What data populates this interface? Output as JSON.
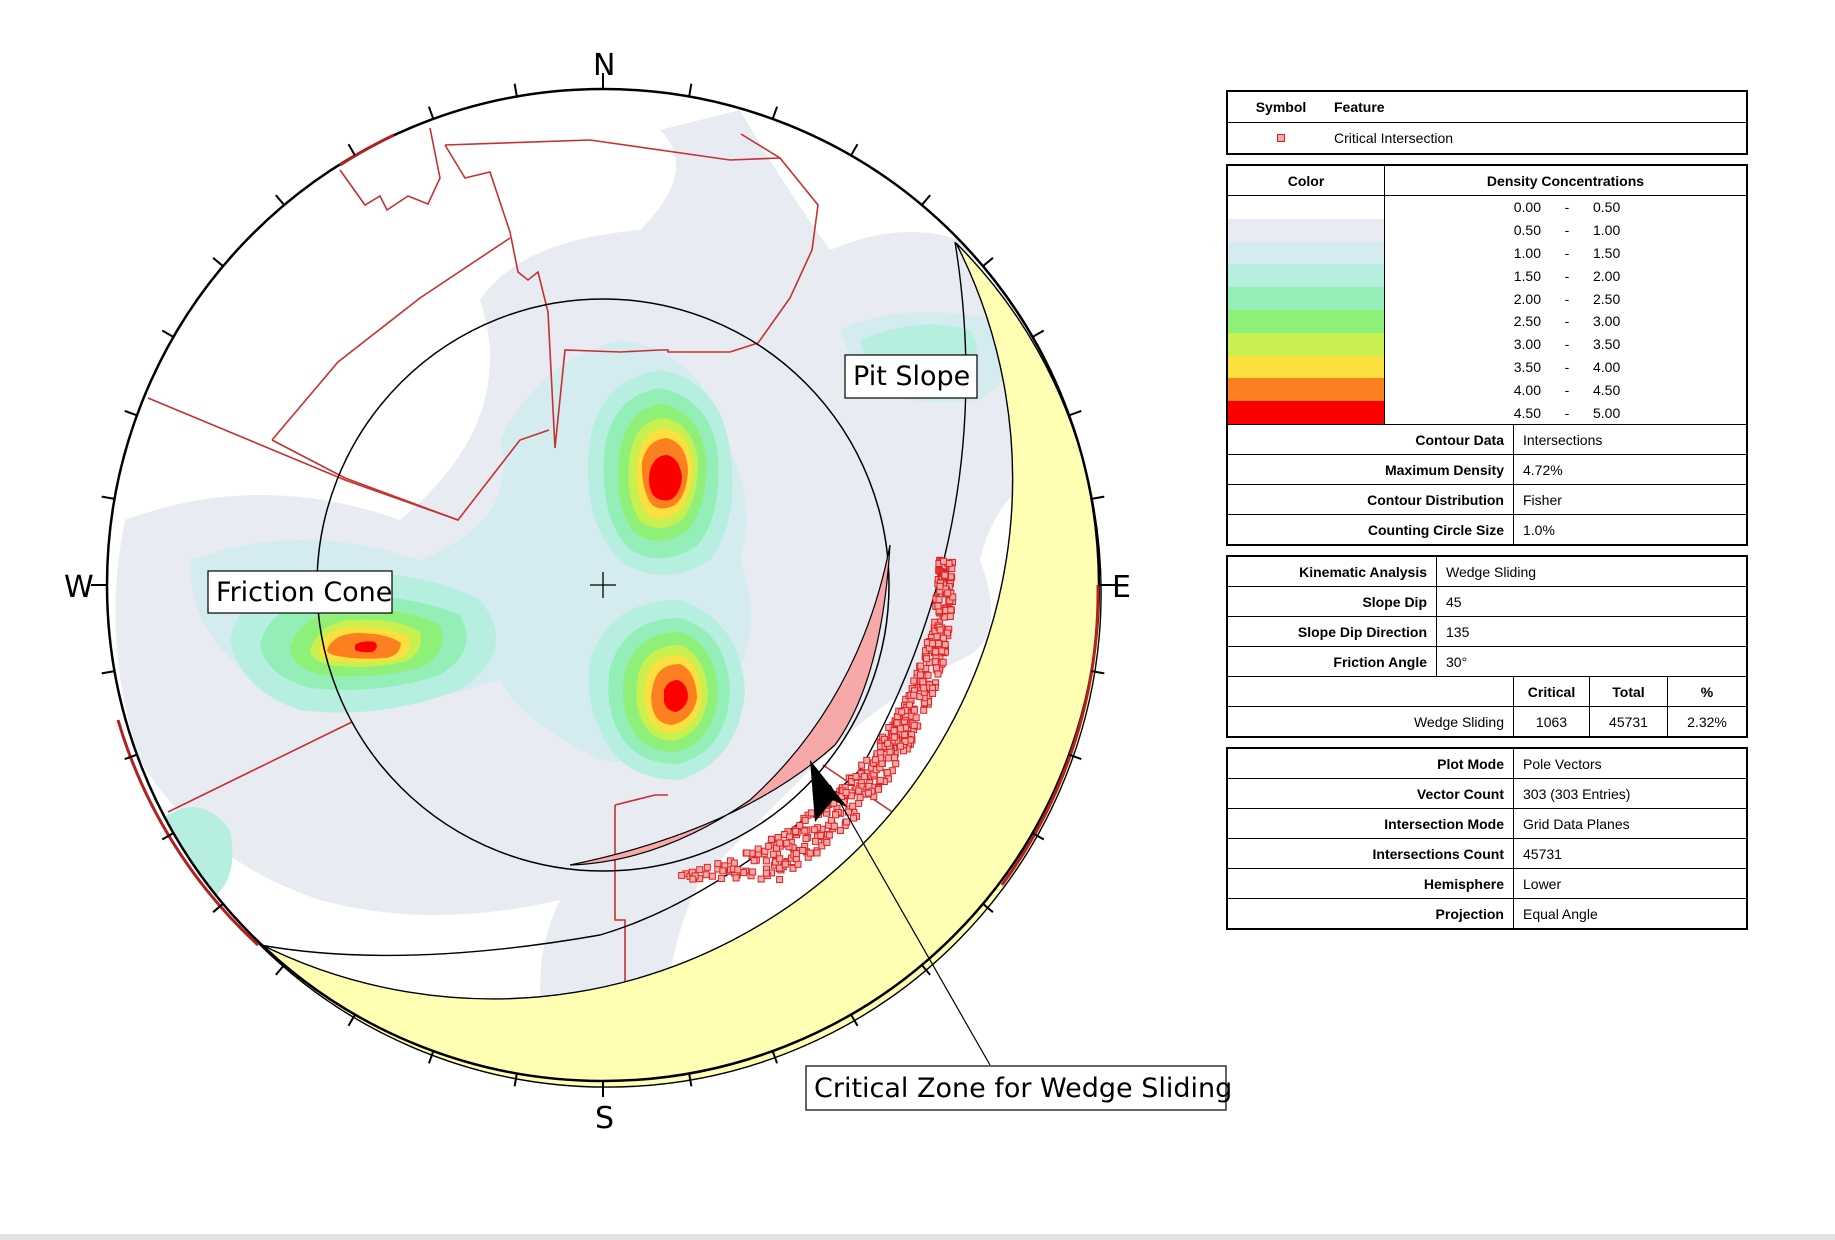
{
  "stereonet": {
    "compass": {
      "north": "N",
      "south": "S",
      "east": "E",
      "west": "W"
    },
    "labels": {
      "pit_slope": "Pit Slope",
      "friction_cone": "Friction Cone",
      "critical_zone": "Critical Zone for Wedge Sliding"
    },
    "colors": {
      "ring": "#000000",
      "ring_red": "#b22020",
      "zone_fill": "#ffffb3",
      "critical_fill": "#f7a8a8",
      "point": "#e02020"
    }
  },
  "legend": {
    "symbol_table": {
      "header_symbol": "Symbol",
      "header_feature": "Feature",
      "feature": "Critical Intersection"
    },
    "density": {
      "header_color": "Color",
      "header_conc": "Density Concentrations",
      "bands": [
        {
          "lo": "0.00",
          "hi": "0.50",
          "color": "#ffffff"
        },
        {
          "lo": "0.50",
          "hi": "1.00",
          "color": "#e8ecf2"
        },
        {
          "lo": "1.00",
          "hi": "1.50",
          "color": "#d4ecf0"
        },
        {
          "lo": "1.50",
          "hi": "2.00",
          "color": "#b6eee0"
        },
        {
          "lo": "2.00",
          "hi": "2.50",
          "color": "#94eeb8"
        },
        {
          "lo": "2.50",
          "hi": "3.00",
          "color": "#8ef078"
        },
        {
          "lo": "3.00",
          "hi": "3.50",
          "color": "#c8f050"
        },
        {
          "lo": "3.50",
          "hi": "4.00",
          "color": "#fce040"
        },
        {
          "lo": "4.00",
          "hi": "4.50",
          "color": "#fc8020"
        },
        {
          "lo": "4.50",
          "hi": "5.00",
          "color": "#fc0000"
        }
      ],
      "rows": [
        {
          "label": "Contour Data",
          "value": "Intersections"
        },
        {
          "label": "Maximum Density",
          "value": "4.72%"
        },
        {
          "label": "Contour Distribution",
          "value": "Fisher"
        },
        {
          "label": "Counting Circle Size",
          "value": "1.0%"
        }
      ]
    },
    "kinematic": {
      "rows": [
        {
          "label": "Kinematic Analysis",
          "value": "Wedge Sliding"
        },
        {
          "label": "Slope Dip",
          "value": "45"
        },
        {
          "label": "Slope Dip Direction",
          "value": "135"
        },
        {
          "label": "Friction Angle",
          "value": "30°"
        }
      ],
      "table_headers": {
        "critical": "Critical",
        "total": "Total",
        "percent": "%"
      },
      "table_row": {
        "name": "Wedge Sliding",
        "critical": "1063",
        "total": "45731",
        "percent": "2.32%"
      }
    },
    "plot": {
      "rows": [
        {
          "label": "Plot Mode",
          "value": "Pole Vectors"
        },
        {
          "label": "Vector Count",
          "value": "303 (303 Entries)"
        },
        {
          "label": "Intersection Mode",
          "value": "Grid Data Planes"
        },
        {
          "label": "Intersections Count",
          "value": "45731"
        },
        {
          "label": "Hemisphere",
          "value": "Lower"
        },
        {
          "label": "Projection",
          "value": "Equal Angle"
        }
      ]
    }
  }
}
